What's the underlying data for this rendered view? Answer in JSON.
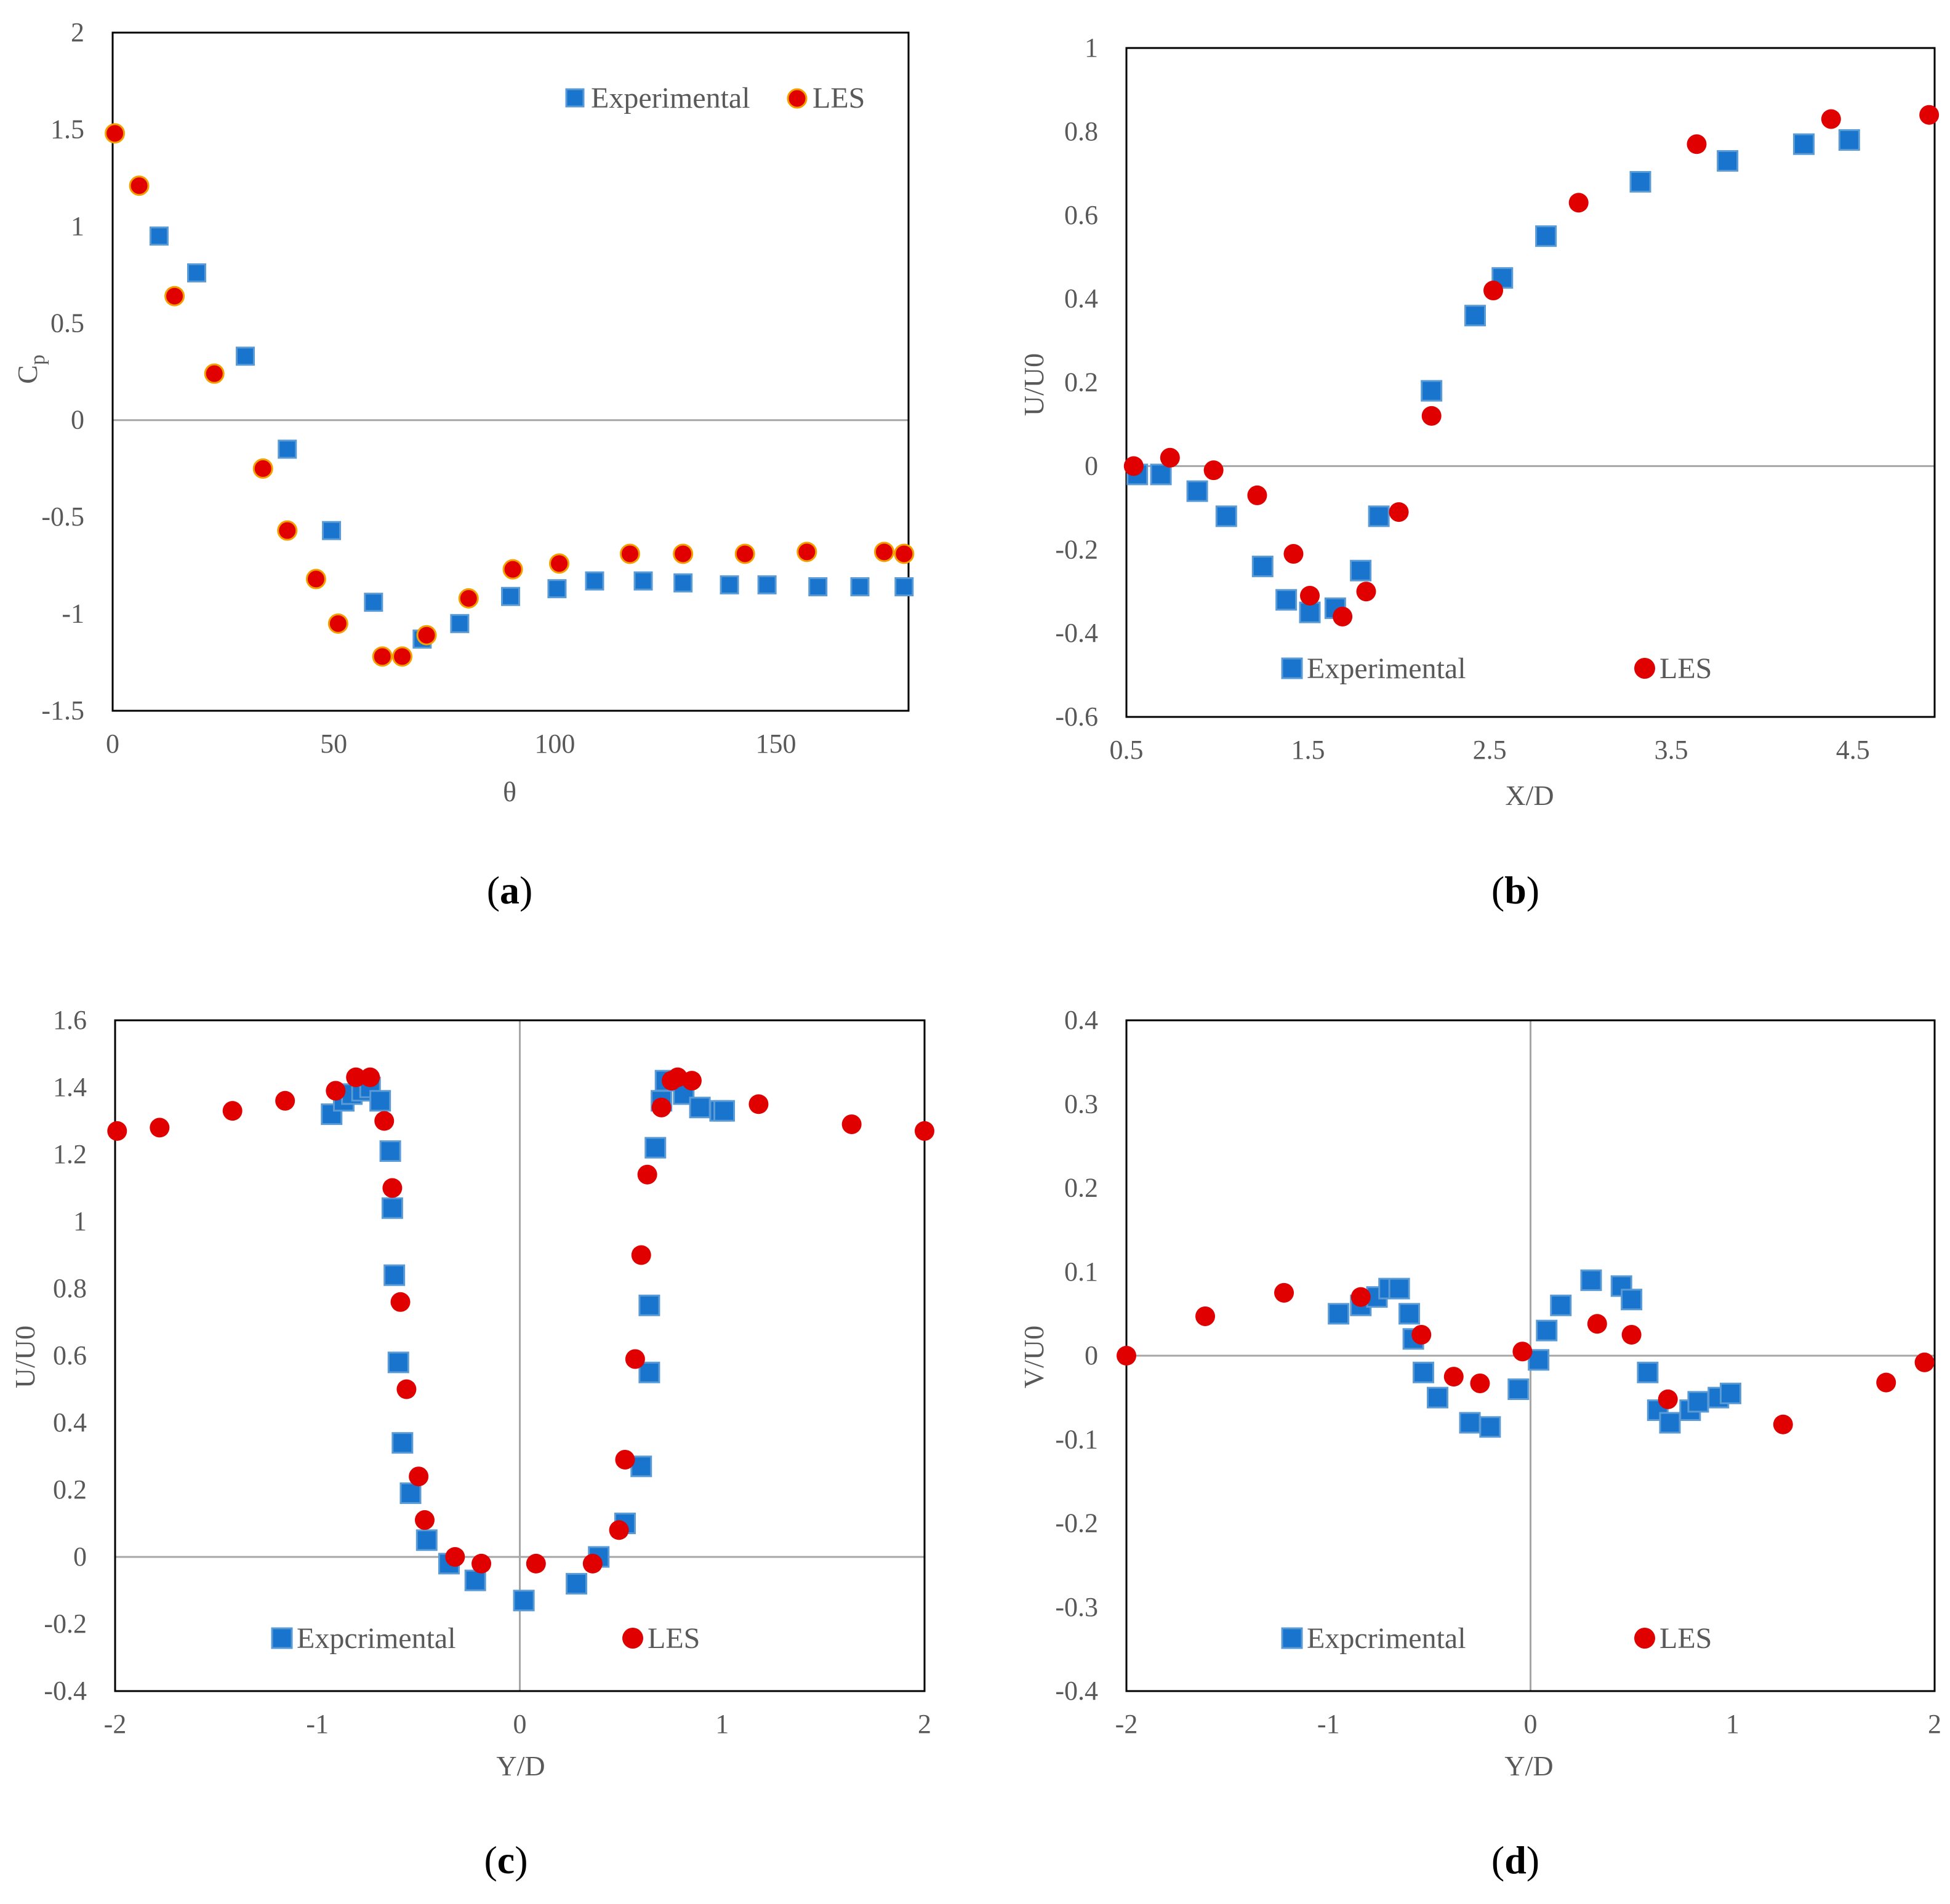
{
  "colors": {
    "experimental": "#1874cd",
    "experimental_edge": "#5b9bd5",
    "les": "#e00000",
    "les_edge_a": "#f4a000",
    "axis": "#000000",
    "zero_line": "#a6a6a6",
    "text": "#595959"
  },
  "chart_data": [
    {
      "type": "scatter",
      "panel": "a",
      "caption": "(a)",
      "caption_parts": [
        "(",
        "a",
        ")"
      ],
      "xlabel": "θ",
      "ylabel_main": "C",
      "ylabel_sub": "p",
      "xlim": [
        0,
        180
      ],
      "ylim": [
        -1.5,
        2
      ],
      "xticks": [
        0,
        50,
        100,
        150
      ],
      "xtick_labels": [
        "0",
        "50",
        "100",
        "150"
      ],
      "yticks": [
        -1.5,
        -1,
        -0.5,
        0,
        0.5,
        1,
        1.5,
        2
      ],
      "ytick_labels": [
        "-1.5",
        "-1",
        "-0.5",
        "0",
        "0.5",
        "1",
        "1.5",
        "2"
      ],
      "zero_line": "horizontal",
      "legend_position": "top-right",
      "series": [
        {
          "name": "Experimental",
          "marker": "square",
          "x": [
            10.5,
            19,
            30,
            39.5,
            49.5,
            59,
            70,
            78.5,
            90,
            100.5,
            109,
            120,
            129,
            139.5,
            148,
            159.5,
            169,
            179
          ],
          "y": [
            0.95,
            0.76,
            0.33,
            -0.15,
            -0.57,
            -0.94,
            -1.13,
            -1.05,
            -0.91,
            -0.87,
            -0.83,
            -0.83,
            -0.84,
            -0.85,
            -0.85,
            -0.86,
            -0.86,
            -0.86
          ]
        },
        {
          "name": "LES",
          "marker": "circle",
          "x": [
            0.5,
            6,
            14,
            23,
            34,
            39.5,
            46,
            51,
            61,
            65.5,
            71,
            80.5,
            90.5,
            101,
            117,
            129,
            143,
            157,
            174.5,
            179
          ],
          "y": [
            1.48,
            1.21,
            0.64,
            0.24,
            -0.25,
            -0.57,
            -0.82,
            -1.05,
            -1.22,
            -1.22,
            -1.11,
            -0.92,
            -0.77,
            -0.74,
            -0.69,
            -0.69,
            -0.69,
            -0.68,
            -0.68,
            -0.69
          ]
        }
      ]
    },
    {
      "type": "scatter",
      "panel": "b",
      "caption": "(b)",
      "caption_parts": [
        "(",
        "b",
        ")"
      ],
      "xlabel": "X/D",
      "ylabel": "U/U0",
      "xlim": [
        0.5,
        4.95
      ],
      "ylim": [
        -0.6,
        1
      ],
      "xticks": [
        0.5,
        1.5,
        2.5,
        3.5,
        4.5
      ],
      "xtick_labels": [
        "0.5",
        "1.5",
        "2.5",
        "3.5",
        "4.5"
      ],
      "yticks": [
        -0.6,
        -0.4,
        -0.2,
        0,
        0.2,
        0.4,
        0.6,
        0.8,
        1
      ],
      "ytick_labels": [
        "-0.6",
        "-0.4",
        "-0.2",
        "0",
        "0.2",
        "0.4",
        "0.6",
        "0.8",
        "1"
      ],
      "zero_line": "horizontal",
      "legend_position": "bottom-center",
      "series": [
        {
          "name": "Experimental",
          "marker": "square",
          "x": [
            0.56,
            0.69,
            0.89,
            1.05,
            1.25,
            1.38,
            1.51,
            1.65,
            1.79,
            1.89,
            2.18,
            2.42,
            2.57,
            2.81,
            3.33,
            3.81,
            4.23,
            4.48
          ],
          "y": [
            -0.02,
            -0.02,
            -0.06,
            -0.12,
            -0.24,
            -0.32,
            -0.35,
            -0.34,
            -0.25,
            -0.12,
            0.18,
            0.36,
            0.45,
            0.55,
            0.68,
            0.73,
            0.77,
            0.78
          ]
        },
        {
          "name": "LES",
          "marker": "circle",
          "x": [
            0.54,
            0.74,
            0.98,
            1.22,
            1.42,
            1.51,
            1.69,
            1.82,
            2.0,
            2.18,
            2.52,
            2.99,
            3.64,
            4.38,
            4.92
          ],
          "y": [
            0.0,
            0.02,
            -0.01,
            -0.07,
            -0.21,
            -0.31,
            -0.36,
            -0.3,
            -0.11,
            0.12,
            0.42,
            0.63,
            0.77,
            0.83,
            0.84
          ]
        }
      ]
    },
    {
      "type": "scatter",
      "panel": "c",
      "caption": "(c)",
      "caption_parts": [
        "(",
        "c",
        ")"
      ],
      "xlabel": "Y/D",
      "ylabel": "U/U0",
      "xlim": [
        -2,
        2
      ],
      "ylim": [
        -0.4,
        1.6
      ],
      "xticks": [
        -2,
        -1,
        0,
        1,
        2
      ],
      "xtick_labels": [
        "-2",
        "-1",
        "0",
        "1",
        "2"
      ],
      "yticks": [
        -0.4,
        -0.2,
        0,
        0.2,
        0.4,
        0.6,
        0.8,
        1,
        1.2,
        1.4,
        1.6
      ],
      "ytick_labels": [
        "-0.4",
        "-0.2",
        "0",
        "0.2",
        "0.4",
        "0.6",
        "0.8",
        "1",
        "1.2",
        "1.4",
        "1.6"
      ],
      "zero_line": "both",
      "legend_position": "bottom-center",
      "series": [
        {
          "name": "Expcrimental",
          "marker": "square",
          "x": [
            -0.93,
            -0.87,
            -0.83,
            -0.78,
            -0.74,
            -0.69,
            -0.64,
            -0.63,
            -0.62,
            -0.6,
            -0.58,
            -0.54,
            -0.46,
            -0.35,
            -0.22,
            0.02,
            0.28,
            0.39,
            0.52,
            0.6,
            0.64,
            0.64,
            0.67,
            0.7,
            0.72,
            0.81,
            0.89,
            0.99,
            1.01
          ],
          "y": [
            1.32,
            1.36,
            1.38,
            1.39,
            1.4,
            1.36,
            1.21,
            1.04,
            0.84,
            0.58,
            0.34,
            0.19,
            0.05,
            -0.02,
            -0.07,
            -0.13,
            -0.08,
            0.0,
            0.1,
            0.27,
            0.55,
            0.75,
            1.22,
            1.36,
            1.42,
            1.38,
            1.34,
            1.33,
            1.33
          ],
          "y_unused": []
        },
        {
          "name": "LES",
          "marker": "circle",
          "x": [
            -1.99,
            -1.78,
            -1.42,
            -1.16,
            -0.91,
            -0.81,
            -0.74,
            -0.67,
            -0.63,
            -0.59,
            -0.56,
            -0.5,
            -0.47,
            -0.32,
            -0.19,
            0.08,
            0.36,
            0.49,
            0.52,
            0.57,
            0.6,
            0.63,
            0.7,
            0.75,
            0.78,
            0.85,
            1.18,
            1.64,
            2.0
          ],
          "y": [
            1.27,
            1.28,
            1.33,
            1.36,
            1.39,
            1.43,
            1.43,
            1.3,
            1.1,
            0.76,
            0.5,
            0.24,
            0.11,
            0.0,
            -0.02,
            -0.02,
            -0.02,
            0.08,
            0.29,
            0.59,
            0.9,
            1.14,
            1.34,
            1.42,
            1.43,
            1.42,
            1.35,
            1.29,
            1.27
          ]
        }
      ]
    },
    {
      "type": "scatter",
      "panel": "d",
      "caption": "(d)",
      "caption_parts": [
        "(",
        "d",
        ")"
      ],
      "xlabel": "Y/D",
      "ylabel": "V/U0",
      "xlim": [
        -2,
        2
      ],
      "ylim": [
        -0.4,
        0.4
      ],
      "xticks": [
        -2,
        -1,
        0,
        1,
        2
      ],
      "xtick_labels": [
        "-2",
        "-1",
        "0",
        "1",
        "2"
      ],
      "yticks": [
        -0.4,
        -0.3,
        -0.2,
        -0.1,
        0,
        0.1,
        0.2,
        0.3,
        0.4
      ],
      "ytick_labels": [
        "-0.4",
        "-0.3",
        "-0.2",
        "-0.1",
        "0",
        "0.1",
        "0.2",
        "0.3",
        "0.4"
      ],
      "zero_line": "both",
      "legend_position": "bottom-center",
      "series": [
        {
          "name": "Expcrimental",
          "marker": "square",
          "x": [
            -0.95,
            -0.84,
            -0.76,
            -0.7,
            -0.65,
            -0.6,
            -0.58,
            -0.53,
            -0.46,
            -0.3,
            -0.2,
            -0.06,
            0.04,
            0.08,
            0.15,
            0.3,
            0.45,
            0.5,
            0.58,
            0.63,
            0.69,
            0.79,
            0.83,
            0.93,
            0.99
          ],
          "y": [
            0.05,
            0.06,
            0.07,
            0.08,
            0.08,
            0.05,
            0.02,
            -0.02,
            -0.05,
            -0.08,
            -0.085,
            -0.04,
            -0.005,
            0.03,
            0.06,
            0.09,
            0.083,
            0.067,
            -0.02,
            -0.065,
            -0.08,
            -0.065,
            -0.055,
            -0.05,
            -0.045
          ]
        },
        {
          "name": "LES",
          "marker": "circle",
          "x": [
            -2.0,
            -1.61,
            -1.22,
            -0.84,
            -0.54,
            -0.38,
            -0.25,
            -0.04,
            0.33,
            0.5,
            0.68,
            1.25,
            1.76,
            1.95
          ],
          "y": [
            0.0,
            0.047,
            0.075,
            0.07,
            0.025,
            -0.025,
            -0.033,
            0.005,
            0.038,
            0.025,
            -0.052,
            -0.082,
            -0.032,
            -0.008
          ]
        }
      ]
    }
  ]
}
